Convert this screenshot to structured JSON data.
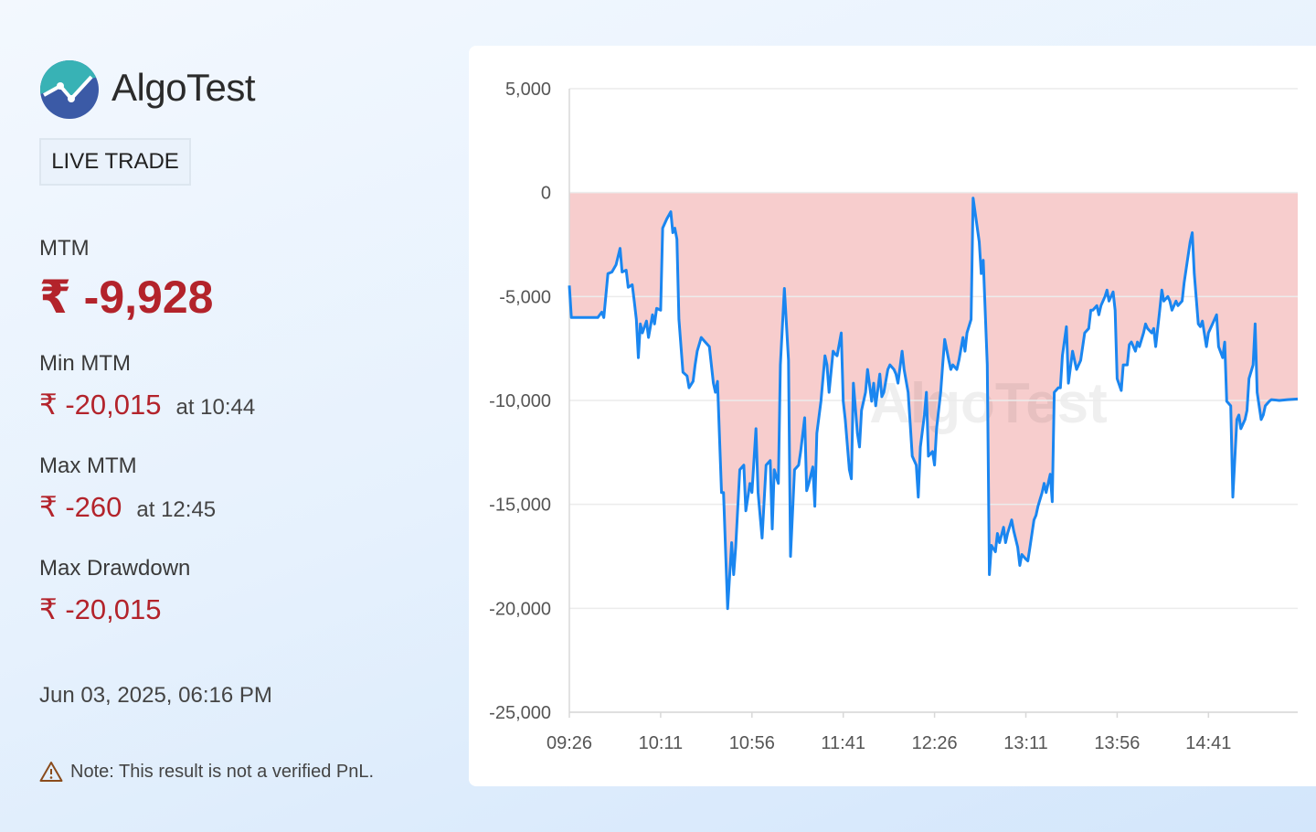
{
  "panel": {
    "brand": "AlgoTest",
    "badge": "LIVE TRADE",
    "mtm": {
      "label": "MTM",
      "value": "₹ -9,928"
    },
    "min_mtm": {
      "label": "Min MTM",
      "value": "₹ -20,015",
      "time": "at 10:44"
    },
    "max_mtm": {
      "label": "Max MTM",
      "value": "₹ -260",
      "time": "at 12:45"
    },
    "max_drawdown": {
      "label": "Max Drawdown",
      "value": "₹ -20,015"
    },
    "timestamp": "Jun 03, 2025, 06:16 PM",
    "note": "Note: This result is not a verified PnL."
  },
  "chart_data": {
    "type": "line",
    "watermark": "AlgoTest",
    "line_color": "#1a86f0",
    "fill_color": "#f7caca",
    "grid": true,
    "xlim": [
      "09:26",
      "15:25"
    ],
    "xticks": [
      "09:26",
      "10:11",
      "10:56",
      "11:41",
      "12:26",
      "13:11",
      "13:56",
      "14:41"
    ],
    "ylim": [
      -25000,
      5000
    ],
    "yticks": [
      {
        "value": -25000,
        "label": "-25,000"
      },
      {
        "value": -20000,
        "label": "-20,000"
      },
      {
        "value": -15000,
        "label": "-15,000"
      },
      {
        "value": -10000,
        "label": "-10,000"
      },
      {
        "value": -5000,
        "label": "-5,000"
      },
      0,
      {
        "value": 5000,
        "label": "5,000"
      }
    ],
    "x": [
      "09:26",
      "09:27",
      "09:40",
      "09:42",
      "09:43",
      "09:45",
      "09:47",
      "09:49",
      "09:51",
      "09:52",
      "09:54",
      "09:55",
      "09:57",
      "09:58",
      "09:59",
      "10:00",
      "10:01",
      "10:02",
      "10:04",
      "10:05",
      "10:07",
      "10:08",
      "10:09",
      "10:11",
      "10:12",
      "10:14",
      "10:16",
      "10:17",
      "10:18",
      "10:19",
      "10:20",
      "10:22",
      "10:24",
      "10:25",
      "10:27",
      "10:28",
      "10:29",
      "10:31",
      "10:33",
      "10:35",
      "10:37",
      "10:38",
      "10:39",
      "10:41",
      "10:42",
      "10:44",
      "10:46",
      "10:47",
      "10:48",
      "10:50",
      "10:52",
      "10:53",
      "10:55",
      "10:56",
      "10:58",
      "10:59",
      "11:01",
      "11:03",
      "11:05",
      "11:06",
      "11:07",
      "11:09",
      "11:10",
      "11:12",
      "11:14",
      "11:15",
      "11:17",
      "11:19",
      "11:20",
      "11:22",
      "11:23",
      "11:24",
      "11:26",
      "11:27",
      "11:28",
      "11:30",
      "11:32",
      "11:33",
      "11:34",
      "11:36",
      "11:37",
      "11:38",
      "11:40",
      "11:41",
      "11:42",
      "11:44",
      "11:45",
      "11:46",
      "11:48",
      "11:49",
      "11:50",
      "11:52",
      "11:53",
      "11:55",
      "11:56",
      "11:57",
      "11:59",
      "12:00",
      "12:01",
      "12:03",
      "12:04",
      "12:06",
      "12:07",
      "12:08",
      "12:10",
      "12:11",
      "12:13",
      "12:14",
      "12:15",
      "12:17",
      "12:18",
      "12:19",
      "12:21",
      "12:22",
      "12:23",
      "12:25",
      "12:26",
      "12:27",
      "12:29",
      "12:30",
      "12:31",
      "12:33",
      "12:34",
      "12:35",
      "12:37",
      "12:38",
      "12:40",
      "12:41",
      "12:42",
      "12:44",
      "12:45",
      "12:48",
      "12:49",
      "12:50",
      "12:52",
      "12:53",
      "12:54",
      "12:56",
      "12:57",
      "12:58",
      "13:00",
      "13:01",
      "13:02",
      "13:04",
      "13:05",
      "13:07",
      "13:08",
      "13:09",
      "13:11",
      "13:12",
      "13:13",
      "13:15",
      "13:16",
      "13:17",
      "13:19",
      "13:20",
      "13:21",
      "13:23",
      "13:24",
      "13:25",
      "13:27",
      "13:28",
      "13:29",
      "13:31",
      "13:32",
      "13:34",
      "13:35",
      "13:36",
      "13:38",
      "13:39",
      "13:40",
      "13:42",
      "13:43",
      "13:44",
      "13:46",
      "13:47",
      "13:48",
      "13:50",
      "13:51",
      "13:52",
      "13:54",
      "13:55",
      "13:56",
      "13:58",
      "13:59",
      "14:01",
      "14:02",
      "14:03",
      "14:05",
      "14:06",
      "14:07",
      "14:09",
      "14:10",
      "14:11",
      "14:13",
      "14:14",
      "14:15",
      "14:17",
      "14:18",
      "14:19",
      "14:21",
      "14:22",
      "14:23",
      "14:25",
      "14:26",
      "14:28",
      "14:29",
      "14:30",
      "14:32",
      "14:33",
      "14:34",
      "14:36",
      "14:37",
      "14:38",
      "14:40",
      "14:41",
      "14:42",
      "14:44",
      "14:45",
      "14:46",
      "14:48",
      "14:49",
      "14:50",
      "14:52",
      "14:53",
      "14:55",
      "14:56",
      "14:57",
      "14:59",
      "15:00",
      "15:01",
      "15:03",
      "15:04",
      "15:05",
      "15:07",
      "15:08",
      "15:09",
      "15:11",
      "15:12",
      "15:16",
      "15:20",
      "15:25"
    ],
    "values": [
      -4470,
      -6010,
      -6010,
      -5750,
      -6010,
      -3900,
      -3820,
      -3470,
      -2680,
      -3820,
      -3730,
      -4560,
      -4430,
      -5220,
      -6100,
      -7940,
      -6320,
      -6750,
      -6180,
      -6970,
      -5880,
      -6320,
      -5570,
      -5660,
      -1710,
      -1270,
      -920,
      -1930,
      -1710,
      -2240,
      -6100,
      -8640,
      -8820,
      -9390,
      -9080,
      -8290,
      -7630,
      -6970,
      -7190,
      -7410,
      -9170,
      -9610,
      -9080,
      -14430,
      -14430,
      -20015,
      -16840,
      -18380,
      -17060,
      -13330,
      -13110,
      -15310,
      -13990,
      -14430,
      -11360,
      -14430,
      -16620,
      -13110,
      -12890,
      -16180,
      -13330,
      -13990,
      -8290,
      -4610,
      -8070,
      -17500,
      -13330,
      -13110,
      -12460,
      -10830,
      -14340,
      -13990,
      -13200,
      -15090,
      -11580,
      -10040,
      -7850,
      -8290,
      -9610,
      -7630,
      -7760,
      -7850,
      -6750,
      -10040,
      -10920,
      -13330,
      -13770,
      -9170,
      -11580,
      -12240,
      -10480,
      -9610,
      -8510,
      -10040,
      -9170,
      -10260,
      -8730,
      -9820,
      -9610,
      -8510,
      -8290,
      -8510,
      -8730,
      -9170,
      -7630,
      -8510,
      -9610,
      -11140,
      -12680,
      -13110,
      -14650,
      -12240,
      -10700,
      -9610,
      -12680,
      -12460,
      -13110,
      -11360,
      -9610,
      -8290,
      -7060,
      -8070,
      -8510,
      -8290,
      -8510,
      -8070,
      -6970,
      -7630,
      -6750,
      -6100,
      -260,
      -2370,
      -3900,
      -3250,
      -8290,
      -18380,
      -16970,
      -17280,
      -16400,
      -16840,
      -16100,
      -16840,
      -16400,
      -15750,
      -16270,
      -17060,
      -17940,
      -17410,
      -17630,
      -17720,
      -17060,
      -15750,
      -15530,
      -15090,
      -14430,
      -13990,
      -14430,
      -13550,
      -14870,
      -9610,
      -9390,
      -9390,
      -7850,
      -6450,
      -9170,
      -7630,
      -8070,
      -8510,
      -8070,
      -7410,
      -6750,
      -6540,
      -5660,
      -5660,
      -5440,
      -5880,
      -5440,
      -5000,
      -4690,
      -5220,
      -4780,
      -5660,
      -8950,
      -9520,
      -8290,
      -8290,
      -7320,
      -7190,
      -7630,
      -7190,
      -7410,
      -6750,
      -6320,
      -6540,
      -6750,
      -6540,
      -7410,
      -5660,
      -4690,
      -5220,
      -5000,
      -5220,
      -5660,
      -5220,
      -5440,
      -5220,
      -4340,
      -3680,
      -2370,
      -1930,
      -3900,
      -6320,
      -6450,
      -6180,
      -7410,
      -6750,
      -6540,
      -6100,
      -5880,
      -7410,
      -7940,
      -7190,
      -10040,
      -10260,
      -14650,
      -10920,
      -10700,
      -11360,
      -10920,
      -10480,
      -8950,
      -8290,
      -6320,
      -9610,
      -10920,
      -10700,
      -10260,
      -10040,
      -9960,
      -10000,
      -9960,
      -9928
    ]
  }
}
